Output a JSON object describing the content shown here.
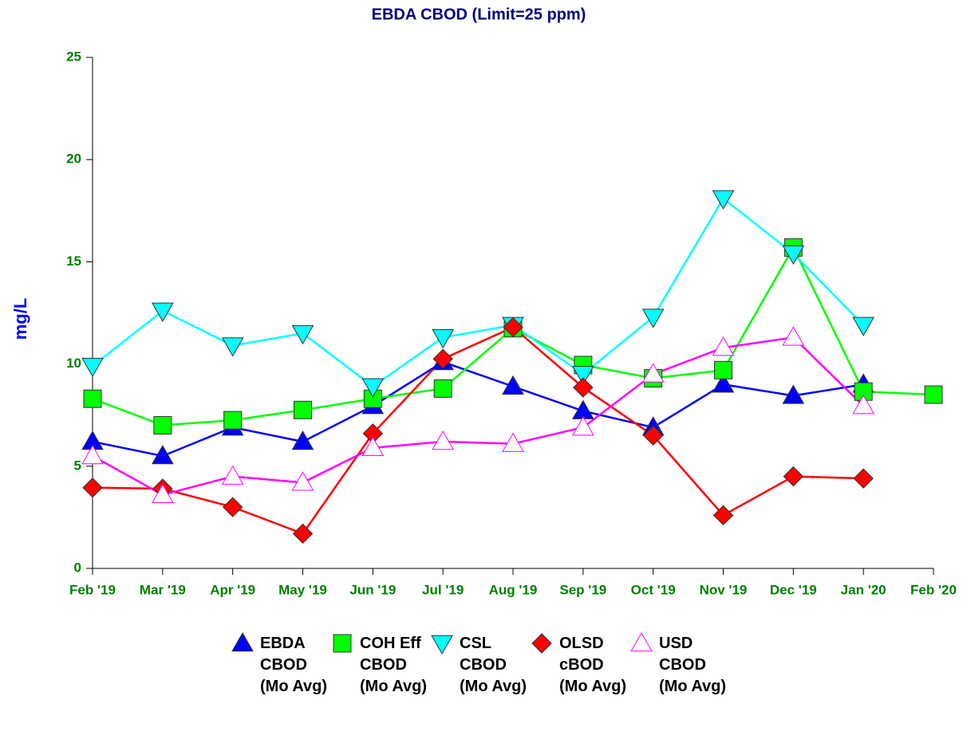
{
  "chart_data": {
    "type": "line",
    "title": "EBDA CBOD (Limit=25 ppm)",
    "y_label": "mg/L",
    "categories": [
      "Feb '19",
      "Mar '19",
      "Apr '19",
      "May '19",
      "Jun '19",
      "Jul '19",
      "Aug '19",
      "Sep '19",
      "Oct '19",
      "Nov '19",
      "Dec '19",
      "Jan '20",
      "Feb '20"
    ],
    "ylim": [
      0,
      25
    ],
    "yticks": [
      0,
      5,
      10,
      15,
      20,
      25
    ],
    "legend": "bottom",
    "series": [
      {
        "name": "EBDA CBOD (Mo Avg)",
        "color": "#0000ff",
        "marker": "triangle",
        "values": [
          6.2,
          5.5,
          6.9,
          6.2,
          7.95,
          10.1,
          8.9,
          7.7,
          6.9,
          9.0,
          8.45,
          9.0,
          null
        ]
      },
      {
        "name": "COH Eff CBOD (Mo Avg)",
        "color": "#00ff00",
        "marker": "square",
        "values": [
          8.3,
          7.0,
          7.25,
          7.75,
          8.3,
          8.8,
          11.75,
          9.95,
          9.3,
          9.7,
          15.7,
          8.65,
          8.5
        ]
      },
      {
        "name": "CSL CBOD (Mo Avg)",
        "color": "#00ffff",
        "marker": "triangle-down",
        "values": [
          9.9,
          12.6,
          10.9,
          11.5,
          8.9,
          11.3,
          11.9,
          9.5,
          12.3,
          18.1,
          15.4,
          11.9,
          null
        ]
      },
      {
        "name": "OLSD cBOD (Mo Avg)",
        "color": "#ff0000",
        "marker": "diamond",
        "values": [
          3.95,
          3.9,
          3.0,
          1.7,
          6.6,
          10.25,
          11.8,
          8.85,
          6.5,
          2.6,
          4.5,
          4.4,
          null
        ]
      },
      {
        "name": "USD CBOD (Mo Avg)",
        "color": "#ff00ff",
        "marker": "triangle-open",
        "values": [
          5.5,
          3.6,
          4.5,
          4.2,
          5.9,
          6.2,
          6.1,
          6.9,
          9.5,
          10.8,
          11.3,
          7.95,
          null
        ]
      }
    ]
  }
}
